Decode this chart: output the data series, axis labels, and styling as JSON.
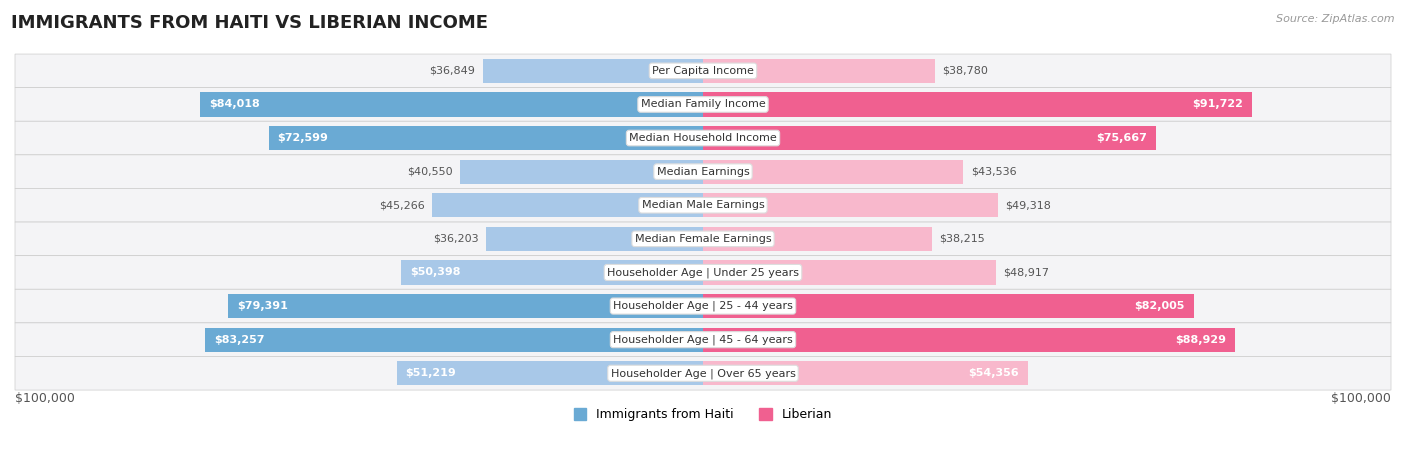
{
  "title": "IMMIGRANTS FROM HAITI VS LIBERIAN INCOME",
  "source": "Source: ZipAtlas.com",
  "categories": [
    "Per Capita Income",
    "Median Family Income",
    "Median Household Income",
    "Median Earnings",
    "Median Male Earnings",
    "Median Female Earnings",
    "Householder Age | Under 25 years",
    "Householder Age | 25 - 44 years",
    "Householder Age | 45 - 64 years",
    "Householder Age | Over 65 years"
  ],
  "haiti_values": [
    36849,
    84018,
    72599,
    40550,
    45266,
    36203,
    50398,
    79391,
    83257,
    51219
  ],
  "liberian_values": [
    38780,
    91722,
    75667,
    43536,
    49318,
    38215,
    48917,
    82005,
    88929,
    54356
  ],
  "haiti_labels": [
    "$36,849",
    "$84,018",
    "$72,599",
    "$40,550",
    "$45,266",
    "$36,203",
    "$50,398",
    "$79,391",
    "$83,257",
    "$51,219"
  ],
  "liberian_labels": [
    "$38,780",
    "$91,722",
    "$75,667",
    "$43,536",
    "$49,318",
    "$38,215",
    "$48,917",
    "$82,005",
    "$88,929",
    "$54,356"
  ],
  "max_value": 100000,
  "haiti_color_light": "#a8c8e8",
  "haiti_color_dark": "#6aaad4",
  "liberian_color_light": "#f8b8cc",
  "liberian_color_dark": "#f06090",
  "inside_label_threshold": 55000,
  "bar_height": 0.72,
  "row_bg_light": "#f0f0f0",
  "row_bg_dark": "#e0e0e8",
  "title_fontsize": 13,
  "source_fontsize": 8,
  "label_fontsize": 8,
  "cat_fontsize": 8,
  "x_axis_label": "$100,000",
  "legend_haiti": "Immigrants from Haiti",
  "legend_liberian": "Liberian"
}
